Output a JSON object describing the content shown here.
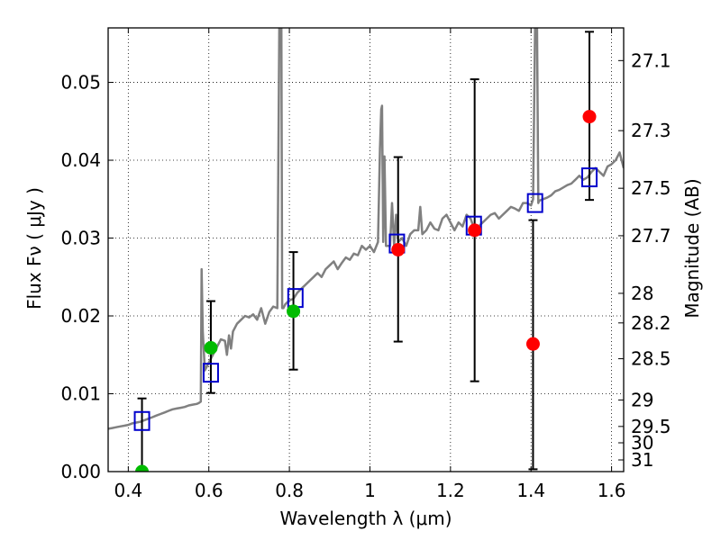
{
  "chart_data": {
    "type": "scatter",
    "xlabel": "Wavelength  λ (μm)",
    "ylabel_left": "Flux  Fν  ( μJy )",
    "ylabel_right": "Magnitude (AB)",
    "xlim": [
      0.35,
      1.63
    ],
    "ylim": [
      0.0,
      0.057
    ],
    "grid": true,
    "x_ticks": [
      0.4,
      0.6,
      0.8,
      1.0,
      1.2,
      1.4,
      1.6
    ],
    "x_tick_labels": [
      "0.4",
      "0.6",
      "0.8",
      "1",
      "1.2",
      "1.4",
      "1.6"
    ],
    "y_ticks": [
      0.0,
      0.01,
      0.02,
      0.03,
      0.04,
      0.05
    ],
    "y_tick_labels": [
      "0.00",
      "0.01",
      "0.02",
      "0.03",
      "0.04",
      "0.05"
    ],
    "right_ticks_flux": [
      0.0528,
      0.0438,
      0.0364,
      0.0303,
      0.0229,
      0.0191,
      0.0145,
      0.0092,
      0.0058,
      0.0037,
      0.0015
    ],
    "right_tick_labels": [
      "27.1",
      "27.3",
      "27.5",
      "27.7",
      "28",
      "28.2",
      "28.5",
      "29",
      "29.5",
      "30",
      "31"
    ],
    "model_spectrum": {
      "name": "SED model",
      "color": "#808080",
      "x": [
        0.35,
        0.36,
        0.37,
        0.38,
        0.39,
        0.4,
        0.41,
        0.42,
        0.43,
        0.44,
        0.45,
        0.46,
        0.47,
        0.48,
        0.49,
        0.5,
        0.51,
        0.52,
        0.53,
        0.54,
        0.55,
        0.56,
        0.57,
        0.575,
        0.58,
        0.582,
        0.585,
        0.59,
        0.6,
        0.61,
        0.62,
        0.63,
        0.64,
        0.645,
        0.65,
        0.655,
        0.66,
        0.67,
        0.68,
        0.69,
        0.7,
        0.71,
        0.72,
        0.73,
        0.74,
        0.75,
        0.76,
        0.77,
        0.775,
        0.778,
        0.78,
        0.782,
        0.785,
        0.79,
        0.8,
        0.81,
        0.82,
        0.83,
        0.84,
        0.85,
        0.86,
        0.87,
        0.88,
        0.89,
        0.9,
        0.91,
        0.92,
        0.93,
        0.94,
        0.95,
        0.96,
        0.97,
        0.98,
        0.99,
        1.0,
        1.01,
        1.02,
        1.025,
        1.028,
        1.03,
        1.033,
        1.036,
        1.04,
        1.05,
        1.055,
        1.06,
        1.065,
        1.07,
        1.08,
        1.09,
        1.1,
        1.11,
        1.12,
        1.125,
        1.13,
        1.14,
        1.15,
        1.16,
        1.17,
        1.18,
        1.19,
        1.2,
        1.21,
        1.22,
        1.23,
        1.24,
        1.25,
        1.26,
        1.27,
        1.28,
        1.29,
        1.3,
        1.31,
        1.32,
        1.33,
        1.34,
        1.35,
        1.36,
        1.37,
        1.38,
        1.39,
        1.4,
        1.405,
        1.41,
        1.412,
        1.415,
        1.418,
        1.42,
        1.43,
        1.44,
        1.45,
        1.46,
        1.47,
        1.48,
        1.49,
        1.5,
        1.51,
        1.52,
        1.53,
        1.54,
        1.55,
        1.56,
        1.57,
        1.58,
        1.59,
        1.6,
        1.61,
        1.62,
        1.63
      ],
      "y": [
        0.0055,
        0.0056,
        0.0057,
        0.0058,
        0.0059,
        0.006,
        0.0062,
        0.0063,
        0.0064,
        0.0066,
        0.0068,
        0.007,
        0.0072,
        0.0074,
        0.0076,
        0.0078,
        0.008,
        0.0081,
        0.0082,
        0.0083,
        0.0085,
        0.0086,
        0.0087,
        0.0088,
        0.009,
        0.026,
        0.018,
        0.013,
        0.014,
        0.015,
        0.016,
        0.017,
        0.0168,
        0.015,
        0.0175,
        0.0158,
        0.018,
        0.019,
        0.0195,
        0.02,
        0.0198,
        0.0202,
        0.0195,
        0.021,
        0.019,
        0.0205,
        0.0212,
        0.021,
        0.057,
        0.057,
        0.057,
        0.021,
        0.021,
        0.0215,
        0.022,
        0.0222,
        0.023,
        0.0235,
        0.024,
        0.0245,
        0.025,
        0.0255,
        0.025,
        0.026,
        0.0265,
        0.027,
        0.026,
        0.0268,
        0.0275,
        0.0272,
        0.028,
        0.0278,
        0.029,
        0.0285,
        0.029,
        0.0282,
        0.0295,
        0.0415,
        0.0465,
        0.047,
        0.0295,
        0.0405,
        0.029,
        0.029,
        0.0345,
        0.029,
        0.033,
        0.0295,
        0.03,
        0.029,
        0.0305,
        0.031,
        0.031,
        0.034,
        0.0305,
        0.031,
        0.032,
        0.0312,
        0.031,
        0.0325,
        0.033,
        0.032,
        0.031,
        0.032,
        0.0315,
        0.033,
        0.0325,
        0.031,
        0.0315,
        0.032,
        0.0325,
        0.033,
        0.0332,
        0.0325,
        0.033,
        0.0335,
        0.034,
        0.0338,
        0.0335,
        0.0345,
        0.0345,
        0.0342,
        0.035,
        0.057,
        0.057,
        0.057,
        0.0345,
        0.0348,
        0.035,
        0.0352,
        0.0355,
        0.036,
        0.0362,
        0.0365,
        0.0368,
        0.037,
        0.0375,
        0.038,
        0.0375,
        0.0378,
        0.0385,
        0.039,
        0.0385,
        0.038,
        0.0392,
        0.0395,
        0.04,
        0.041,
        0.039
      ]
    },
    "series": [
      {
        "name": "Green points",
        "color": "#00bb00",
        "marker": "circle",
        "x": [
          0.434,
          0.605,
          0.81
        ],
        "y": [
          0.0,
          0.0159,
          0.0206
        ]
      },
      {
        "name": "Red points",
        "color": "#ff0000",
        "marker": "circle",
        "x": [
          1.07,
          1.26,
          1.405,
          1.545
        ],
        "y": [
          0.0285,
          0.031,
          0.0164,
          0.0456
        ]
      },
      {
        "name": "Blue squares",
        "color": "#0000cc",
        "marker": "square",
        "x": [
          0.434,
          0.605,
          0.815,
          1.067,
          1.258,
          1.41,
          1.545
        ],
        "y": [
          0.0065,
          0.0127,
          0.0223,
          0.0293,
          0.0316,
          0.0345,
          0.0378
        ]
      }
    ],
    "error_bars": [
      {
        "x": 0.434,
        "low": 0.0,
        "high": 0.0094
      },
      {
        "x": 0.605,
        "low": 0.0101,
        "high": 0.0219
      },
      {
        "x": 0.81,
        "low": 0.0131,
        "high": 0.0282
      },
      {
        "x": 1.07,
        "low": 0.0167,
        "high": 0.0404
      },
      {
        "x": 1.26,
        "low": 0.0116,
        "high": 0.0504
      },
      {
        "x": 1.405,
        "low": 0.0003,
        "high": 0.0323
      },
      {
        "x": 1.545,
        "low": 0.0349,
        "high": 0.0565
      }
    ]
  }
}
